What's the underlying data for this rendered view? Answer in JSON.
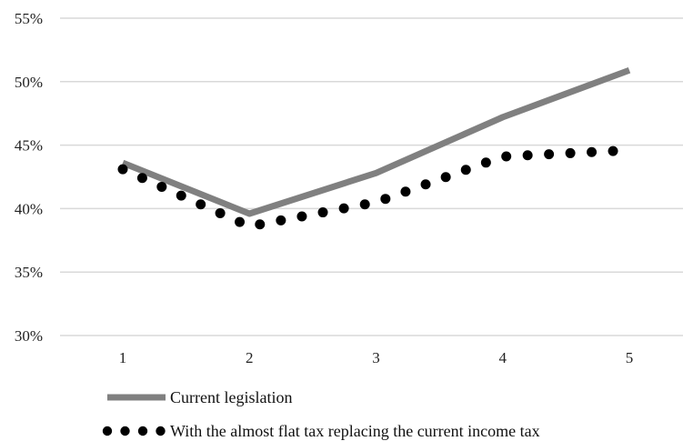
{
  "chart_data": {
    "type": "line",
    "title": "",
    "xlabel": "",
    "ylabel": "",
    "x": [
      1,
      2,
      3,
      4,
      5
    ],
    "x_tick_labels": [
      "1",
      "2",
      "3",
      "4",
      "5"
    ],
    "ylim": [
      0.3,
      0.55
    ],
    "y_ticks": [
      0.3,
      0.35,
      0.4,
      0.45,
      0.5,
      0.55
    ],
    "y_tick_labels": [
      "30%",
      "35%",
      "40%",
      "45%",
      "50%",
      "55%"
    ],
    "grid": "horizontal",
    "legend_position": "bottom",
    "series": [
      {
        "name": "Current legislation",
        "style": "solid",
        "color": "#808080",
        "values": [
          0.436,
          0.396,
          0.428,
          0.472,
          0.509
        ]
      },
      {
        "name": "With the almost flat tax replacing the current income tax",
        "style": "dotted",
        "color": "#000000",
        "values": [
          0.431,
          0.386,
          0.405,
          0.441,
          0.446
        ]
      }
    ]
  }
}
